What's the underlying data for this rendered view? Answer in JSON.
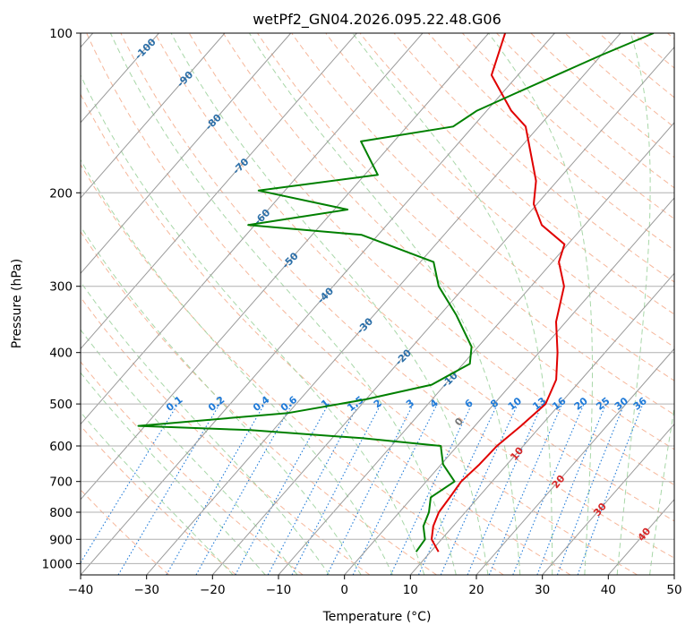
{
  "chart_data": {
    "type": "line",
    "title": "wetPf2_GN04.2026.095.22.48.G06",
    "xlabel": "Temperature (°C)",
    "ylabel": "Pressure (hPa)",
    "xlim": [
      -40,
      50
    ],
    "ylim": [
      1050,
      100
    ],
    "y_scale": "log",
    "skew": true,
    "grid": true,
    "x_ticks": [
      -40,
      -30,
      -20,
      -10,
      0,
      10,
      20,
      30,
      40,
      50
    ],
    "y_ticks": [
      100,
      200,
      300,
      400,
      500,
      600,
      700,
      800,
      900,
      1000
    ],
    "series": [
      {
        "color": "#e00000",
        "points": [
          [
            11.2,
            950
          ],
          [
            8.5,
            900
          ],
          [
            7.0,
            850
          ],
          [
            6.0,
            800
          ],
          [
            5.7,
            750
          ],
          [
            5.3,
            700
          ],
          [
            5.8,
            650
          ],
          [
            6.0,
            600
          ],
          [
            7.0,
            550
          ],
          [
            7.8,
            500
          ],
          [
            6.2,
            450
          ],
          [
            2.8,
            400
          ],
          [
            -1.5,
            350
          ],
          [
            -5.0,
            300
          ],
          [
            -9.0,
            270
          ],
          [
            -10.5,
            250
          ],
          [
            -16.5,
            230
          ],
          [
            -20.5,
            210
          ],
          [
            -23.2,
            190
          ],
          [
            -32.0,
            150
          ],
          [
            -36.3,
            140
          ],
          [
            -44.0,
            120
          ],
          [
            -47.5,
            100
          ]
        ]
      },
      {
        "color": "#008000",
        "points": [
          [
            7.8,
            950
          ],
          [
            7.5,
            900
          ],
          [
            5.5,
            850
          ],
          [
            4.5,
            800
          ],
          [
            2.8,
            750
          ],
          [
            4.3,
            700
          ],
          [
            0.3,
            650
          ],
          [
            -2.5,
            600
          ],
          [
            -15.5,
            580
          ],
          [
            -33.5,
            560
          ],
          [
            -51.0,
            550
          ],
          [
            -30.0,
            520
          ],
          [
            -20.0,
            490
          ],
          [
            -12.0,
            460
          ],
          [
            -9.0,
            420
          ],
          [
            -11.0,
            390
          ],
          [
            -13.5,
            370
          ],
          [
            -17.5,
            340
          ],
          [
            -24.0,
            300
          ],
          [
            -28.0,
            270
          ],
          [
            -42.5,
            240
          ],
          [
            -61.0,
            230
          ],
          [
            -48.0,
            215
          ],
          [
            -64.0,
            198
          ],
          [
            -48.0,
            185
          ],
          [
            -55.0,
            160
          ],
          [
            -43.0,
            150
          ],
          [
            -41.5,
            140
          ],
          [
            -38.0,
            130
          ],
          [
            -30.0,
            110
          ],
          [
            -25.0,
            100
          ]
        ]
      }
    ],
    "isotherm_labels": [
      "-100",
      "-90",
      "-80",
      "-70",
      "-60",
      "-50",
      "-40",
      "-30",
      "-20",
      "-10"
    ],
    "mixing_ratio_labels": [
      "0.1",
      "0.2",
      "0.4",
      "0.6",
      "1",
      "1.5",
      "2",
      "3",
      "4",
      "6",
      "8",
      "10",
      "13",
      "16",
      "20",
      "25",
      "30",
      "36"
    ],
    "moist_adiabat_labels": [
      "0",
      "10",
      "20",
      "30",
      "40"
    ],
    "colors": {
      "temperature": "#e00000",
      "dewpoint": "#008000",
      "dry_adiabat": "#f4a582",
      "moist_adiabat": "#9ed39e",
      "mixing_ratio": "#1f7ad8",
      "isotherm": "#9a9a9a",
      "isotherm_label": "#2c6fa8",
      "moist_label": "#d62728"
    }
  }
}
